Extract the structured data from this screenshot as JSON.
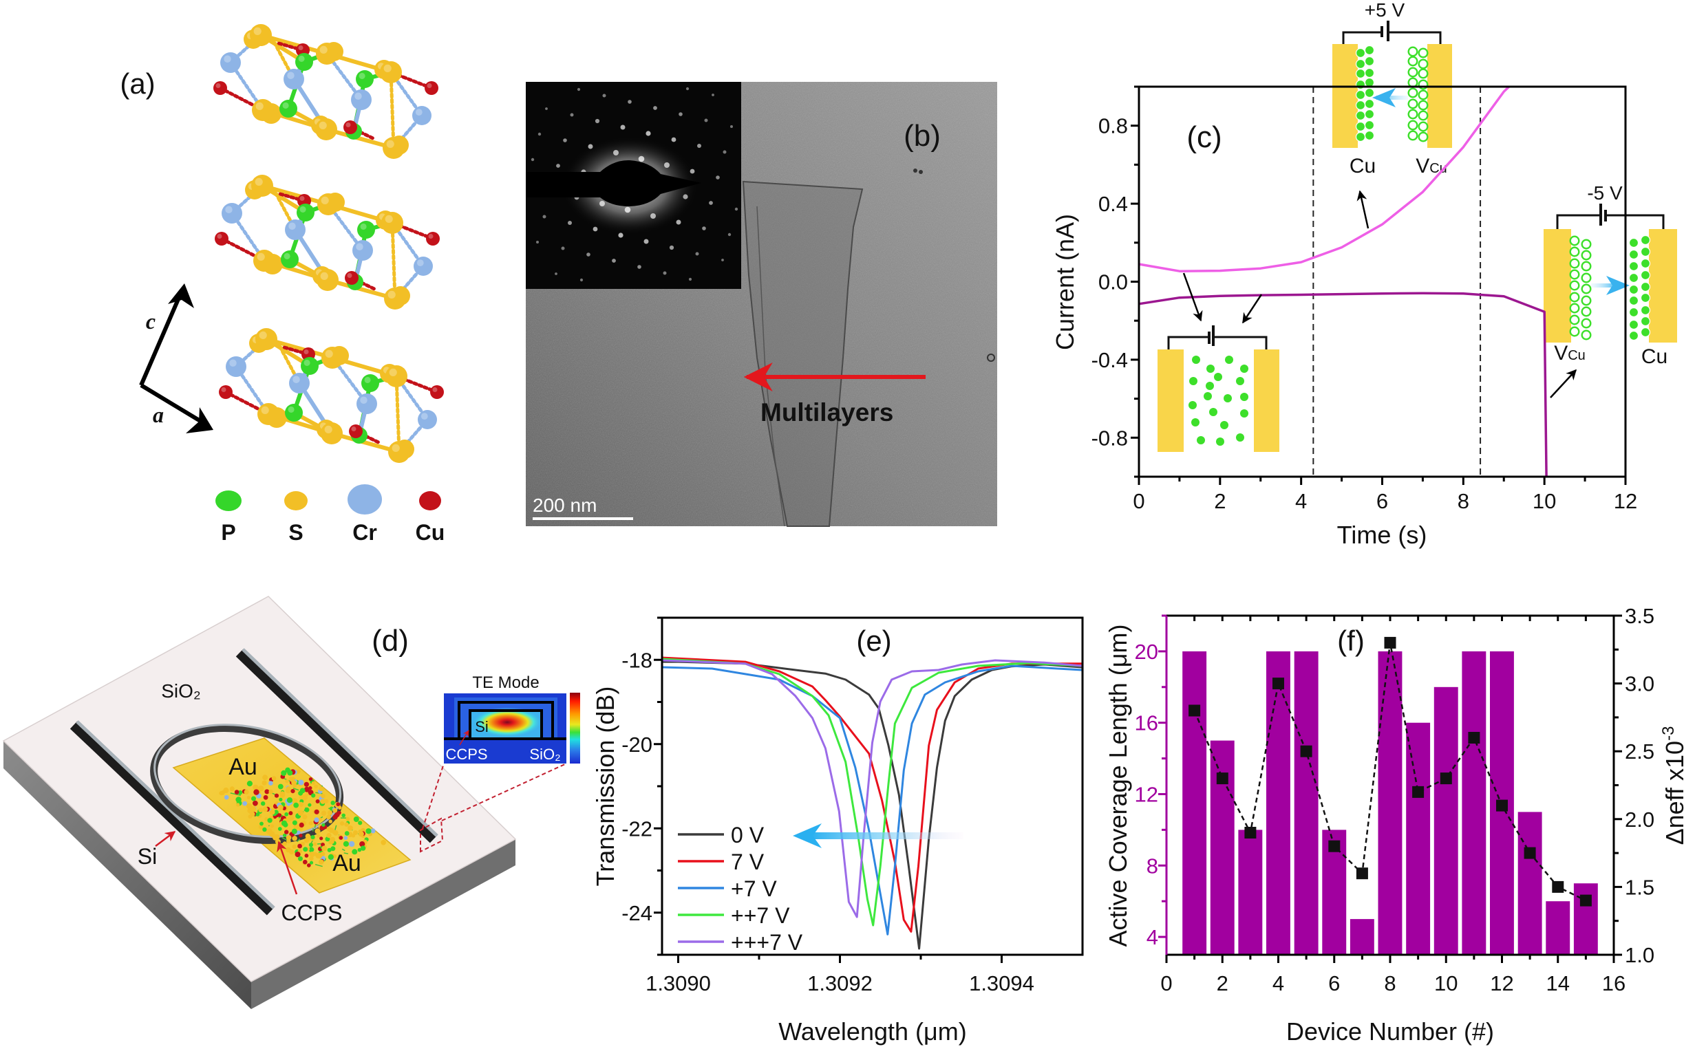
{
  "figure": {
    "panel_a": {
      "label": "(a)",
      "axis_c": "c",
      "axis_a": "a",
      "legend": [
        {
          "symbol": "P",
          "color": "#35d62a"
        },
        {
          "symbol": "S",
          "color": "#f2bf26"
        },
        {
          "symbol": "Cr",
          "color": "#8eb4e6"
        },
        {
          "symbol": "Cu",
          "color": "#c3121a"
        }
      ]
    },
    "panel_b": {
      "label": "(b)",
      "annotation": "Multilayers",
      "scale_bar": "200 nm",
      "arrow_color": "#e3171d"
    },
    "panel_c_insets": {
      "top": {
        "voltage": "+5 V",
        "left_label": "Cu",
        "right_label": "V",
        "right_label_sub": "Cu"
      },
      "right": {
        "voltage": "-5 V",
        "left_label": "V",
        "left_label_sub": "Cu",
        "right_label": "Cu"
      },
      "electrode_color": "#f9d54a",
      "ion_color": "#3ddf2a"
    },
    "panel_d": {
      "label": "(d)",
      "substrate": "SiO₂",
      "pad_top": "Au",
      "pad_bottom": "Au",
      "waveguide": "Si",
      "material": "CCPS",
      "inset": {
        "title": "TE Mode",
        "core": "Si",
        "coating": "CCPS",
        "substrate": "SiO₂"
      }
    }
  },
  "chart_data": [
    {
      "type": "line",
      "label": "(c)",
      "title": "",
      "xlabel": "Time (s)",
      "ylabel": "Current (nA)",
      "xlim": [
        0,
        12
      ],
      "ylim": [
        -1.0,
        1.0
      ],
      "xticks": [
        0,
        2,
        4,
        6,
        8,
        10,
        12
      ],
      "xtick_labels": [
        "0",
        "2",
        "4",
        "6",
        "8",
        "10",
        "12"
      ],
      "yticks": [
        -0.8,
        -0.4,
        0.0,
        0.4,
        0.8
      ],
      "ytick_labels": [
        "-0.8",
        "-0.4",
        "0.0",
        "0.4",
        "0.8"
      ],
      "grid": false,
      "vlines": [
        4.3,
        8.42
      ],
      "series": [
        {
          "color": "#ee5fe6",
          "x": [
            0,
            1,
            2,
            3,
            4,
            5,
            6,
            7,
            8,
            9,
            9.13
          ],
          "y": [
            0.09,
            0.054,
            0.056,
            0.068,
            0.1,
            0.176,
            0.294,
            0.46,
            0.69,
            0.975,
            1.0
          ]
        },
        {
          "color": "#9c1790",
          "x": [
            0,
            1,
            2,
            3,
            4,
            5,
            6,
            7,
            8,
            9,
            10,
            10.05
          ],
          "y": [
            -0.114,
            -0.082,
            -0.073,
            -0.069,
            -0.067,
            -0.064,
            -0.061,
            -0.059,
            -0.061,
            -0.075,
            -0.154,
            -1.0
          ]
        }
      ]
    },
    {
      "type": "line",
      "label": "(e)",
      "title": "",
      "xlabel": "Wavelength (μm)",
      "ylabel": "Transmission (dB)",
      "xlim": [
        1.30898,
        1.3095
      ],
      "ylim": [
        -25,
        -17
      ],
      "xticks": [
        1.309,
        1.3092,
        1.3094
      ],
      "xtick_labels": [
        "1.3090",
        "1.3092",
        "1.3094"
      ],
      "yticks": [
        -24,
        -22,
        -20,
        -18
      ],
      "ytick_labels": [
        "-24",
        "-22",
        "-20",
        "-18"
      ],
      "grid": false,
      "legend_position": "bottom-left",
      "series": [
        {
          "name": "0 V",
          "color": "#3b3b3b",
          "points": [
            [
              1.308981,
              -18.046
            ],
            [
              1.309,
              -18.046
            ],
            [
              1.309083,
              -18.091
            ],
            [
              1.309145,
              -18.241
            ],
            [
              1.309182,
              -18.326
            ],
            [
              1.309207,
              -18.469
            ],
            [
              1.309236,
              -18.827
            ],
            [
              1.309248,
              -19.153
            ],
            [
              1.30926,
              -20.033
            ],
            [
              1.309273,
              -21.205
            ],
            [
              1.309285,
              -22.899
            ],
            [
              1.309298,
              -24.853
            ],
            [
              1.30931,
              -22.248
            ],
            [
              1.30932,
              -20.554
            ],
            [
              1.30933,
              -19.446
            ],
            [
              1.309342,
              -18.86
            ],
            [
              1.309363,
              -18.469
            ],
            [
              1.309388,
              -18.241
            ],
            [
              1.309412,
              -18.156
            ],
            [
              1.309453,
              -18.111
            ],
            [
              1.309499,
              -18.176
            ]
          ]
        },
        {
          "name": "7 V",
          "color": "#e8101c",
          "points": [
            [
              1.308981,
              -17.948
            ],
            [
              1.309083,
              -18.046
            ],
            [
              1.309125,
              -18.274
            ],
            [
              1.309166,
              -18.632
            ],
            [
              1.309182,
              -18.958
            ],
            [
              1.3092,
              -19.349
            ],
            [
              1.309236,
              -20.228
            ],
            [
              1.309252,
              -21.336
            ],
            [
              1.309268,
              -22.801
            ],
            [
              1.309279,
              -24.169
            ],
            [
              1.309288,
              -24.45
            ],
            [
              1.309297,
              -22.899
            ],
            [
              1.30931,
              -20.033
            ],
            [
              1.30932,
              -19.186
            ],
            [
              1.309342,
              -18.534
            ],
            [
              1.309371,
              -18.208
            ],
            [
              1.309412,
              -18.091
            ],
            [
              1.309499,
              -18.091
            ]
          ]
        },
        {
          "name": "+7 V",
          "color": "#2f86e0",
          "points": [
            [
              1.308981,
              -18.176
            ],
            [
              1.309042,
              -18.208
            ],
            [
              1.309125,
              -18.469
            ],
            [
              1.309166,
              -18.86
            ],
            [
              1.3092,
              -19.381
            ],
            [
              1.309219,
              -20.554
            ],
            [
              1.309236,
              -22.052
            ],
            [
              1.30925,
              -23.55
            ],
            [
              1.309259,
              -24.515
            ],
            [
              1.309268,
              -22.899
            ],
            [
              1.309279,
              -20.619
            ],
            [
              1.309289,
              -19.511
            ],
            [
              1.309305,
              -18.827
            ],
            [
              1.30933,
              -18.534
            ],
            [
              1.309371,
              -18.274
            ],
            [
              1.309412,
              -18.143
            ],
            [
              1.309499,
              -18.241
            ]
          ]
        },
        {
          "name": "++7 V",
          "color": "#3ee83e",
          "points": [
            [
              1.308981,
              -17.98
            ],
            [
              1.309083,
              -18.091
            ],
            [
              1.309125,
              -18.339
            ],
            [
              1.309166,
              -18.86
            ],
            [
              1.309186,
              -19.316
            ],
            [
              1.309207,
              -20.423
            ],
            [
              1.309223,
              -22.248
            ],
            [
              1.309234,
              -23.681
            ],
            [
              1.309241,
              -24.3
            ],
            [
              1.30925,
              -22.899
            ],
            [
              1.30926,
              -20.945
            ],
            [
              1.309268,
              -19.511
            ],
            [
              1.309289,
              -18.664
            ],
            [
              1.309322,
              -18.306
            ],
            [
              1.309371,
              -18.143
            ],
            [
              1.309433,
              -18.078
            ],
            [
              1.309499,
              -18.143
            ]
          ]
        },
        {
          "name": "+++7 V",
          "color": "#9b6be8",
          "points": [
            [
              1.308981,
              -18.013
            ],
            [
              1.309083,
              -18.091
            ],
            [
              1.309116,
              -18.339
            ],
            [
              1.309145,
              -18.86
            ],
            [
              1.309166,
              -19.381
            ],
            [
              1.309182,
              -20.098
            ],
            [
              1.309199,
              -21.596
            ],
            [
              1.309211,
              -23.746
            ],
            [
              1.309221,
              -24.104
            ],
            [
              1.309229,
              -22.248
            ],
            [
              1.30924,
              -19.967
            ],
            [
              1.30925,
              -18.99
            ],
            [
              1.309264,
              -18.469
            ],
            [
              1.309289,
              -18.274
            ],
            [
              1.309322,
              -18.241
            ],
            [
              1.309351,
              -18.111
            ],
            [
              1.309392,
              -18.013
            ],
            [
              1.309453,
              -18.065
            ],
            [
              1.309499,
              -18.143
            ]
          ]
        }
      ]
    },
    {
      "type": "bar+line",
      "label": "(f)",
      "title": "",
      "xlabel": "Device Number (#)",
      "ylabel_left": "Active Coverage Length (μm)",
      "ylabel_right": "Δneff x10",
      "ylabel_right_sup": "-3",
      "xlim": [
        0,
        16
      ],
      "ylim_left": [
        3,
        22
      ],
      "ylim_right": [
        1.0,
        3.5
      ],
      "xticks": [
        0,
        2,
        4,
        6,
        8,
        10,
        12,
        14,
        16
      ],
      "xtick_labels": [
        "0",
        "2",
        "4",
        "6",
        "8",
        "10",
        "12",
        "14",
        "16"
      ],
      "yticks_left": [
        4,
        8,
        12,
        16,
        20
      ],
      "ytick_labels_left": [
        "4",
        "8",
        "12",
        "16",
        "20"
      ],
      "yticks_right": [
        1.0,
        1.5,
        2.0,
        2.5,
        3.0,
        3.5
      ],
      "ytick_labels_right": [
        "1.0",
        "1.5",
        "2.0",
        "2.5",
        "3.0",
        "3.5"
      ],
      "grid": false,
      "devices": [
        1,
        2,
        3,
        4,
        5,
        6,
        7,
        8,
        9,
        10,
        11,
        12,
        13,
        14,
        15
      ],
      "bar_values": [
        20,
        15,
        10,
        20,
        20,
        10,
        5,
        20,
        16,
        18,
        20,
        20,
        11,
        6,
        7
      ],
      "line_values": [
        2.8,
        2.3,
        1.9,
        3.0,
        2.5,
        1.8,
        1.6,
        3.3,
        2.2,
        2.3,
        2.6,
        2.1,
        1.75,
        1.5,
        1.4
      ],
      "bar_color": "#a1009f",
      "left_axis_color": "#a1009f",
      "line_color": "#111111"
    }
  ]
}
